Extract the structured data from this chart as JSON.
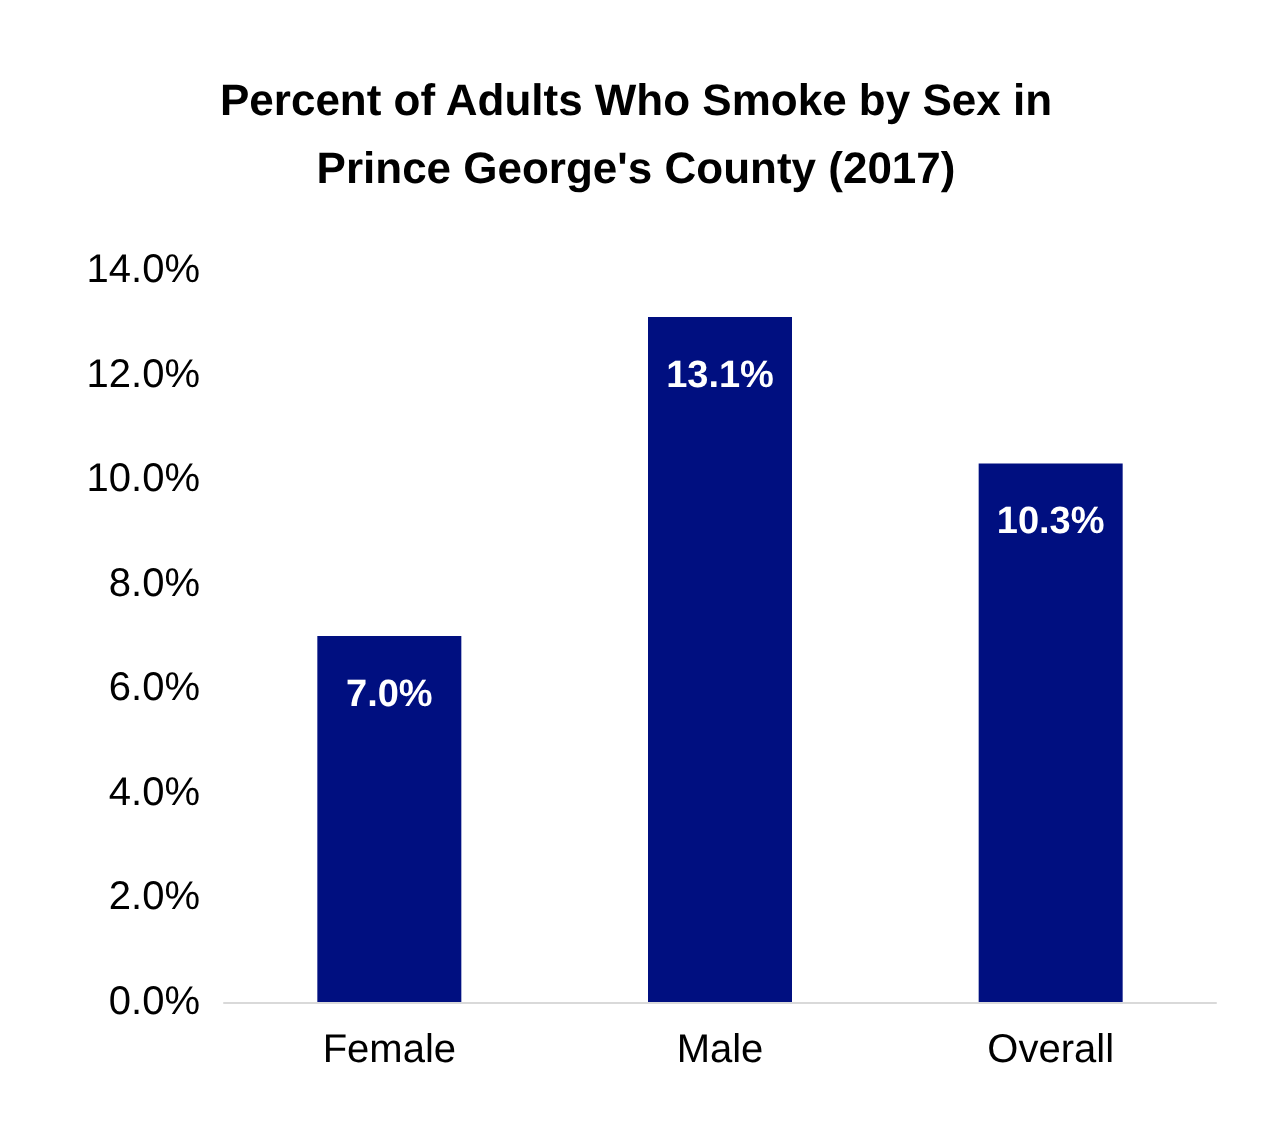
{
  "chart_data": {
    "type": "bar",
    "title": "Percent of Adults Who Smoke by Sex in\nPrince George's County (2017)",
    "categories": [
      "Female",
      "Male",
      "Overall"
    ],
    "values": [
      7.0,
      13.1,
      10.3
    ],
    "color": "#000f80",
    "value_labels": [
      "7.0%",
      "13.1%",
      "10.3%"
    ],
    "ylim": [
      0,
      14
    ],
    "yticks": [
      {
        "value": 0,
        "label": "0.0%"
      },
      {
        "value": 2,
        "label": "2.0%"
      },
      {
        "value": 4,
        "label": "4.0%"
      },
      {
        "value": 6,
        "label": "6.0%"
      },
      {
        "value": 8,
        "label": "8.0%"
      },
      {
        "value": 10,
        "label": "10.0%"
      },
      {
        "value": 12,
        "label": "12.0%"
      },
      {
        "value": 14,
        "label": "14.0%"
      }
    ],
    "grid": false
  }
}
